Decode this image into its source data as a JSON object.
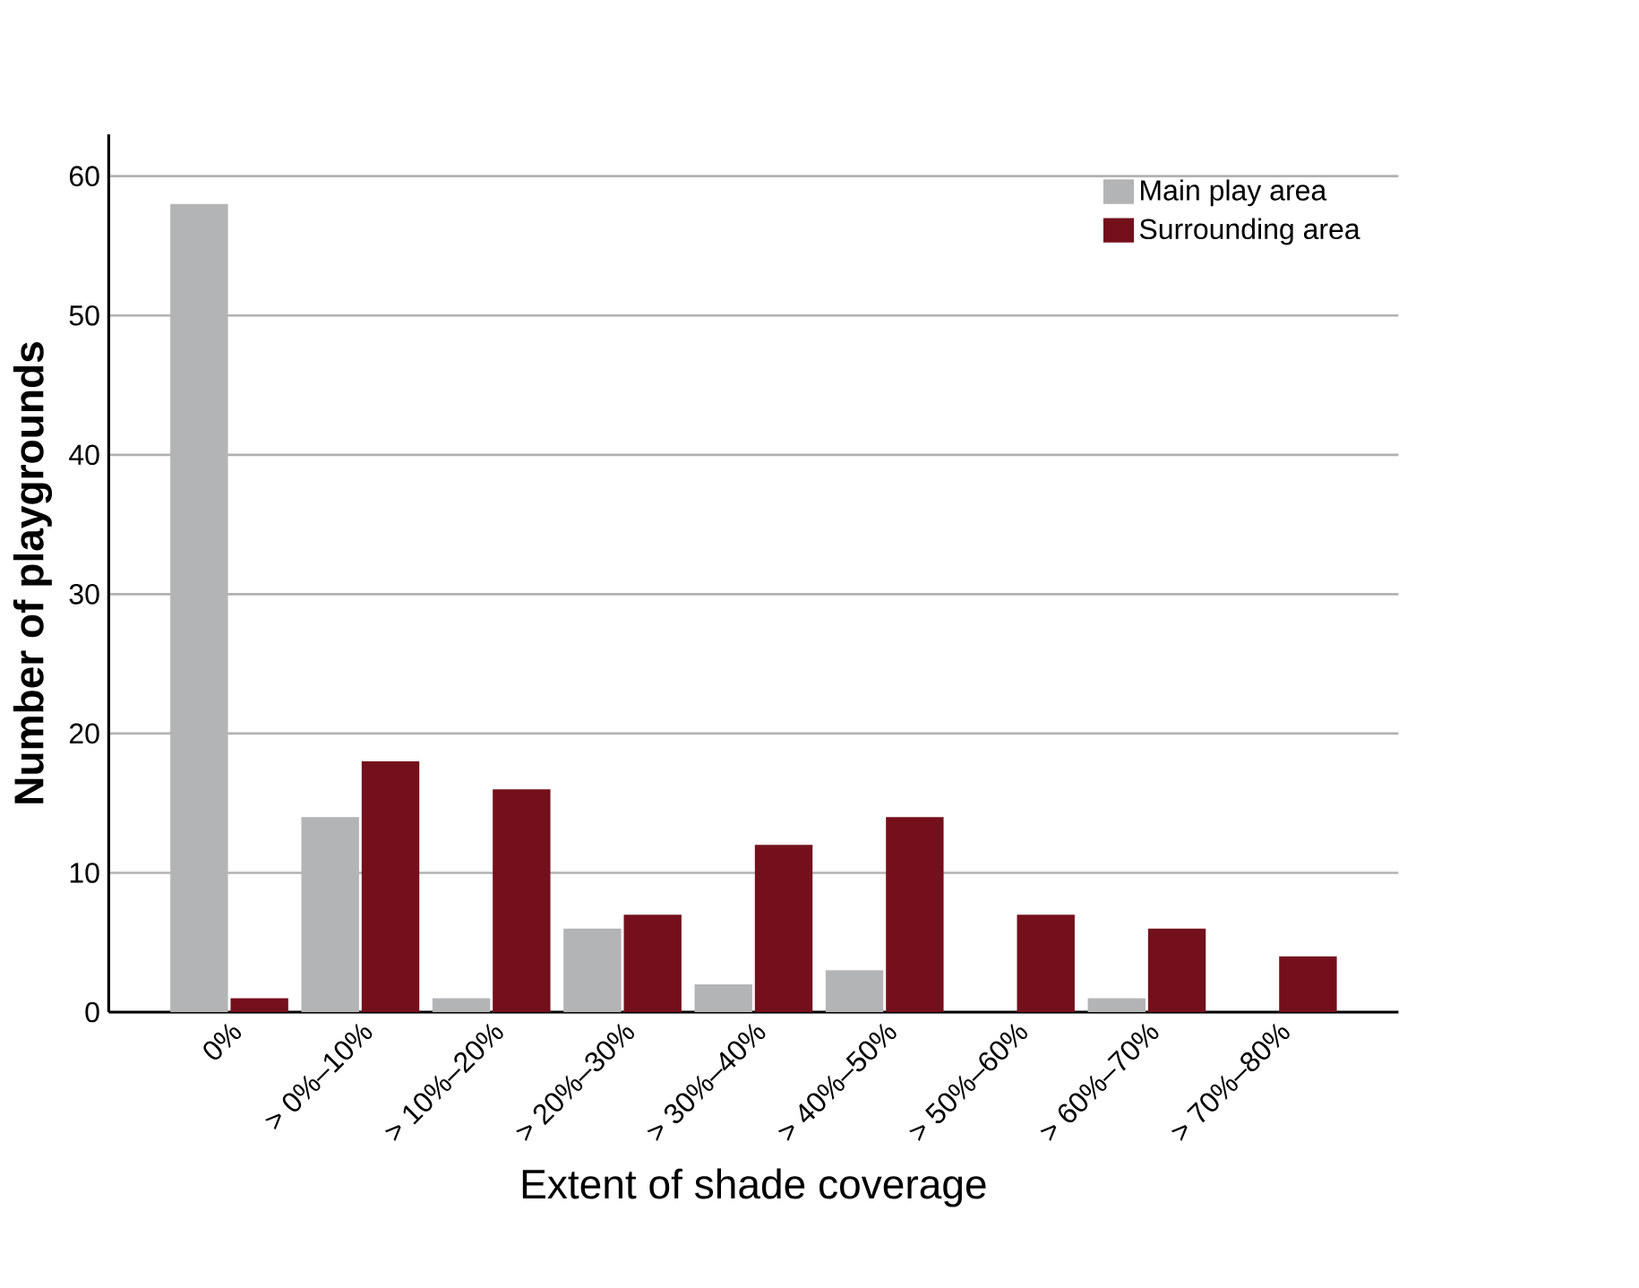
{
  "chart_data": {
    "type": "bar",
    "xlabel": "Extent of shade coverage",
    "ylabel": "Number of playgrounds",
    "categories": [
      "0%",
      "> 0%–10%",
      "> 10%–20%",
      "> 20%–30%",
      "> 30%–40%",
      "> 40%–50%",
      "> 50%–60%",
      "> 60%–70%",
      "> 70%–80%"
    ],
    "series": [
      {
        "name": "Main play area",
        "color": "#b3b4b6",
        "values": [
          58,
          14,
          1,
          6,
          2,
          3,
          0,
          1,
          0
        ]
      },
      {
        "name": "Surrounding area",
        "color": "#74101c",
        "values": [
          1,
          18,
          16,
          7,
          12,
          14,
          7,
          6,
          4
        ]
      }
    ],
    "ylim": [
      0,
      63
    ],
    "yticks": [
      0,
      10,
      20,
      30,
      40,
      50,
      60
    ],
    "grid": "y",
    "legend": "top right"
  }
}
